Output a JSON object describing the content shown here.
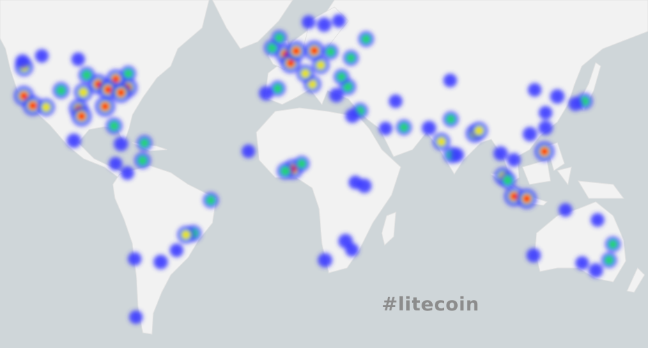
{
  "hashtag": "#litecoin",
  "colors": {
    "ocean": "#cfd6d9",
    "land": "#f2f2f2",
    "label": "#8c8c8c",
    "heat_low": "#3b3bff",
    "heat_mid": "#22e06a",
    "heat_high": "#f5e31c",
    "heat_max": "#ff1a00"
  },
  "heat_points": [
    {
      "lat": 47.6,
      "lon": -122.3,
      "w": 0.8
    },
    {
      "lat": 37.7,
      "lon": -122.4,
      "w": 1
    },
    {
      "lat": 34,
      "lon": -118.2,
      "w": 1
    },
    {
      "lat": 33.4,
      "lon": -112,
      "w": 0.7
    },
    {
      "lat": 39.7,
      "lon": -105,
      "w": 0.6
    },
    {
      "lat": 32.8,
      "lon": -96.8,
      "w": 0.9
    },
    {
      "lat": 29.8,
      "lon": -95.4,
      "w": 1
    },
    {
      "lat": 41.9,
      "lon": -87.6,
      "w": 1
    },
    {
      "lat": 40.7,
      "lon": -74,
      "w": 1
    },
    {
      "lat": 33.7,
      "lon": -84.4,
      "w": 1
    },
    {
      "lat": 25.8,
      "lon": -80.2,
      "w": 0.6
    },
    {
      "lat": 43.7,
      "lon": -79.4,
      "w": 0.9
    },
    {
      "lat": 45.5,
      "lon": -73.6,
      "w": 0.5
    },
    {
      "lat": 40,
      "lon": -83,
      "w": 1
    },
    {
      "lat": 39,
      "lon": -94.6,
      "w": 0.8
    },
    {
      "lat": 45,
      "lon": -93,
      "w": 0.6
    },
    {
      "lat": 38.9,
      "lon": -77,
      "w": 1
    },
    {
      "lat": 19.4,
      "lon": -99,
      "w": 0.4
    },
    {
      "lat": 49.3,
      "lon": -123,
      "w": 0.4
    },
    {
      "lat": 51,
      "lon": -114,
      "w": 0.3
    },
    {
      "lat": 50,
      "lon": -97,
      "w": 0.3
    },
    {
      "lat": 18,
      "lon": -77,
      "w": 0.4
    },
    {
      "lat": 18.4,
      "lon": -66,
      "w": 0.5
    },
    {
      "lat": 9,
      "lon": -79.5,
      "w": 0.3
    },
    {
      "lat": 10.5,
      "lon": -66.9,
      "w": 0.6
    },
    {
      "lat": 4.7,
      "lon": -74,
      "w": 0.3
    },
    {
      "lat": -8,
      "lon": -35,
      "w": 0.5
    },
    {
      "lat": -22.9,
      "lon": -43.2,
      "w": 0.6
    },
    {
      "lat": -23.5,
      "lon": -46.6,
      "w": 0.7
    },
    {
      "lat": -30,
      "lon": -51,
      "w": 0.3
    },
    {
      "lat": -34.6,
      "lon": -58.4,
      "w": 0.4
    },
    {
      "lat": -33.4,
      "lon": -70.6,
      "w": 0.3
    },
    {
      "lat": -53,
      "lon": -70,
      "w": 0.3
    },
    {
      "lat": 51.5,
      "lon": -0.1,
      "w": 1
    },
    {
      "lat": 48.8,
      "lon": 2.3,
      "w": 1
    },
    {
      "lat": 52.4,
      "lon": 4.9,
      "w": 1
    },
    {
      "lat": 52.5,
      "lon": 13.4,
      "w": 1
    },
    {
      "lat": 40.4,
      "lon": -3.7,
      "w": 0.5
    },
    {
      "lat": 38.7,
      "lon": -9.1,
      "w": 0.4
    },
    {
      "lat": 41.9,
      "lon": 12.5,
      "w": 0.7
    },
    {
      "lat": 45.5,
      "lon": 9.2,
      "w": 0.7
    },
    {
      "lat": 48.2,
      "lon": 16.4,
      "w": 0.7
    },
    {
      "lat": 52.2,
      "lon": 21,
      "w": 0.5
    },
    {
      "lat": 59.3,
      "lon": 18,
      "w": 0.4
    },
    {
      "lat": 59.9,
      "lon": 10.7,
      "w": 0.3
    },
    {
      "lat": 60.2,
      "lon": 24.9,
      "w": 0.3
    },
    {
      "lat": 55.7,
      "lon": 37.6,
      "w": 0.5
    },
    {
      "lat": 50.4,
      "lon": 30.5,
      "w": 0.5
    },
    {
      "lat": 41,
      "lon": 29,
      "w": 0.6
    },
    {
      "lat": 38,
      "lon": 23.7,
      "w": 0.4
    },
    {
      "lat": 44.4,
      "lon": 26.1,
      "w": 0.5
    },
    {
      "lat": 53.3,
      "lon": -6.3,
      "w": 0.6
    },
    {
      "lat": 56,
      "lon": -3,
      "w": 0.5
    },
    {
      "lat": 32,
      "lon": 34.8,
      "w": 0.5
    },
    {
      "lat": 30,
      "lon": 31.2,
      "w": 0.4
    },
    {
      "lat": 25.2,
      "lon": 55.3,
      "w": 0.5
    },
    {
      "lat": 24.7,
      "lon": 46.7,
      "w": 0.3
    },
    {
      "lat": 35.7,
      "lon": 51.4,
      "w": 0.3
    },
    {
      "lat": 6.5,
      "lon": 3.4,
      "w": 1
    },
    {
      "lat": 5.6,
      "lon": -0.2,
      "w": 0.6
    },
    {
      "lat": 9,
      "lon": 7.5,
      "w": 0.5
    },
    {
      "lat": -1.3,
      "lon": 36.8,
      "w": 0.4
    },
    {
      "lat": 0.3,
      "lon": 32.6,
      "w": 0.3
    },
    {
      "lat": -26.2,
      "lon": 28,
      "w": 0.4
    },
    {
      "lat": -33.9,
      "lon": 18.4,
      "w": 0.4
    },
    {
      "lat": -29.8,
      "lon": 31,
      "w": 0.3
    },
    {
      "lat": 14.7,
      "lon": -17.4,
      "w": 0.3
    },
    {
      "lat": 24.9,
      "lon": 67,
      "w": 0.4
    },
    {
      "lat": 28.6,
      "lon": 77.2,
      "w": 0.5
    },
    {
      "lat": 19,
      "lon": 72.8,
      "w": 0.7
    },
    {
      "lat": 13,
      "lon": 77.6,
      "w": 0.6
    },
    {
      "lat": 13,
      "lon": 80,
      "w": 0.4
    },
    {
      "lat": 22.6,
      "lon": 88.4,
      "w": 0.8
    },
    {
      "lat": 23.8,
      "lon": 90.4,
      "w": 0.7
    },
    {
      "lat": 13.7,
      "lon": 100.5,
      "w": 0.4
    },
    {
      "lat": 3.1,
      "lon": 101.7,
      "w": 0.8
    },
    {
      "lat": 1.3,
      "lon": 103.8,
      "w": 0.6
    },
    {
      "lat": -6.2,
      "lon": 106.8,
      "w": 1
    },
    {
      "lat": -7.3,
      "lon": 112.7,
      "w": 1
    },
    {
      "lat": 14.6,
      "lon": 121,
      "w": 1
    },
    {
      "lat": 10.8,
      "lon": 106.7,
      "w": 0.3
    },
    {
      "lat": 22.3,
      "lon": 114.2,
      "w": 0.4
    },
    {
      "lat": 25,
      "lon": 121.5,
      "w": 0.4
    },
    {
      "lat": 31.2,
      "lon": 121.5,
      "w": 0.3
    },
    {
      "lat": 39.9,
      "lon": 116.4,
      "w": 0.3
    },
    {
      "lat": 37.5,
      "lon": 127,
      "w": 0.4
    },
    {
      "lat": 35.7,
      "lon": 139.7,
      "w": 0.6
    },
    {
      "lat": 34.7,
      "lon": 135.5,
      "w": 0.4
    },
    {
      "lat": 43.2,
      "lon": 76.9,
      "w": 0.3
    },
    {
      "lat": -32,
      "lon": 115.9,
      "w": 0.4
    },
    {
      "lat": -33.9,
      "lon": 151.2,
      "w": 0.5
    },
    {
      "lat": -37.8,
      "lon": 145,
      "w": 0.4
    },
    {
      "lat": -27.5,
      "lon": 153,
      "w": 0.5
    },
    {
      "lat": -35,
      "lon": 138.6,
      "w": 0.3
    },
    {
      "lat": -12.5,
      "lon": 130.8,
      "w": 0.3
    },
    {
      "lat": -17,
      "lon": 145.8,
      "w": 0.3
    }
  ]
}
